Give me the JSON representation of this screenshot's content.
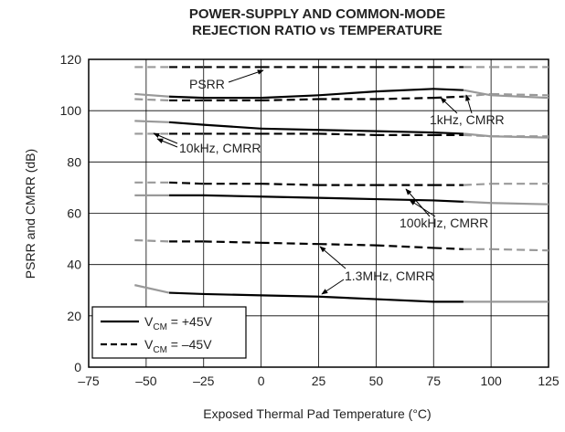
{
  "chart_data": {
    "type": "line",
    "title": [
      "POWER-SUPPLY AND COMMON-MODE",
      "REJECTION RATIO vs TEMPERATURE"
    ],
    "xlabel": "Exposed Thermal Pad Temperature (°C)",
    "ylabel": "PSRR and CMRR (dB)",
    "xlim": [
      -75,
      125
    ],
    "xticks": [
      {
        "value": -75,
        "label": "–75"
      },
      {
        "value": -50,
        "label": "–50"
      },
      {
        "value": -25,
        "label": "–25"
      },
      0,
      25,
      50,
      75,
      100,
      125
    ],
    "ylim": [
      0,
      120
    ],
    "yticks": [
      0,
      20,
      40,
      60,
      80,
      100,
      120
    ],
    "grid": true,
    "x": [
      -55,
      -40,
      -25,
      0,
      25,
      50,
      75,
      88,
      100,
      125
    ],
    "series": [
      {
        "dash": true,
        "colors": [
          "#999",
          "#000",
          "#000",
          "#000",
          "#000",
          "#000",
          "#000",
          "#999",
          "#999"
        ],
        "values": [
          117,
          117,
          117,
          117,
          117,
          117,
          117,
          117,
          117,
          117
        ]
      },
      {
        "dash": false,
        "colors": [
          "#999",
          "#000",
          "#000",
          "#000",
          "#000",
          "#000",
          "#000",
          "#999",
          "#999"
        ],
        "values": [
          106.5,
          105.5,
          105,
          105,
          106,
          107.5,
          108.5,
          108,
          106,
          105
        ]
      },
      {
        "dash": true,
        "colors": [
          "#999",
          "#000",
          "#000",
          "#000",
          "#000",
          "#000",
          "#000",
          "#999",
          "#999"
        ],
        "values": [
          104.5,
          104,
          104,
          104,
          104.5,
          104.5,
          105,
          105.5,
          106.5,
          106
        ]
      },
      {
        "dash": false,
        "colors": [
          "#999",
          "#000",
          "#000",
          "#000",
          "#000",
          "#000",
          "#000",
          "#999",
          "#999"
        ],
        "values": [
          96,
          95.5,
          94.5,
          93,
          92.5,
          92,
          91.5,
          91,
          90,
          89.5
        ]
      },
      {
        "dash": true,
        "colors": [
          "#999",
          "#000",
          "#000",
          "#000",
          "#000",
          "#000",
          "#000",
          "#999",
          "#999"
        ],
        "values": [
          91,
          91,
          91,
          91,
          91,
          90.5,
          90.5,
          90.5,
          90,
          90
        ]
      },
      {
        "dash": false,
        "colors": [
          "#999",
          "#000",
          "#000",
          "#000",
          "#000",
          "#000",
          "#000",
          "#999",
          "#999"
        ],
        "values": [
          67,
          67,
          67,
          66.5,
          66,
          65.5,
          65,
          64.5,
          64,
          63.5
        ]
      },
      {
        "dash": true,
        "colors": [
          "#999",
          "#000",
          "#000",
          "#000",
          "#000",
          "#000",
          "#000",
          "#999",
          "#999"
        ],
        "values": [
          72,
          72,
          71.5,
          71.5,
          71,
          71,
          71,
          71,
          71.5,
          71.5
        ]
      },
      {
        "dash": true,
        "colors": [
          "#999",
          "#000",
          "#000",
          "#000",
          "#000",
          "#000",
          "#000",
          "#999",
          "#999"
        ],
        "values": [
          49.5,
          49,
          49,
          48.5,
          48,
          47.5,
          46.5,
          46,
          46,
          45.5
        ]
      },
      {
        "dash": false,
        "colors": [
          "#999",
          "#000",
          "#000",
          "#000",
          "#000",
          "#000",
          "#000",
          "#999",
          "#999"
        ],
        "values": [
          32,
          29,
          28.5,
          28,
          27.5,
          26.5,
          25.5,
          25.5,
          25.5,
          25.5
        ]
      }
    ],
    "annotations": [
      "PSRR",
      "1kHz, CMRR",
      "10kHz, CMRR",
      "100kHz, CMRR",
      "1.3MHz, CMRR"
    ],
    "legend": [
      {
        "dash": false,
        "symbol": "V",
        "subscript": "CM",
        "text": " = +45V"
      },
      {
        "dash": true,
        "symbol": "V",
        "subscript": "CM",
        "text": " = –45V"
      }
    ]
  }
}
